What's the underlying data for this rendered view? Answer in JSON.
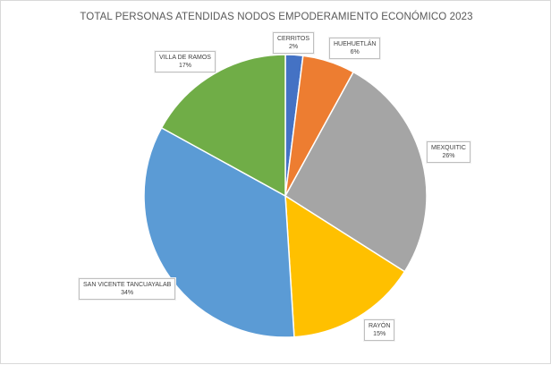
{
  "chart_data": {
    "type": "pie",
    "title": "TOTAL PERSONAS ATENDIDAS NODOS EMPODERAMIENTO ECONÓMICO 2023",
    "categories": [
      "CERRITOS",
      "HUEHUETLÁN",
      "MEXQUITIC",
      "RAYÓN",
      "SAN VICENTE TANCUAYALAB",
      "VILLA DE RAMOS"
    ],
    "values": [
      2,
      6,
      26,
      15,
      34,
      17
    ],
    "percent_labels": [
      "2%",
      "6%",
      "26%",
      "15%",
      "34%",
      "17%"
    ],
    "colors": [
      "#4472c4",
      "#ed7d31",
      "#a5a5a5",
      "#ffc000",
      "#5b9bd5",
      "#70ad47"
    ],
    "start_angle_deg": 0,
    "direction": "clockwise",
    "legend": "none",
    "data_labels": "category-and-percent"
  }
}
